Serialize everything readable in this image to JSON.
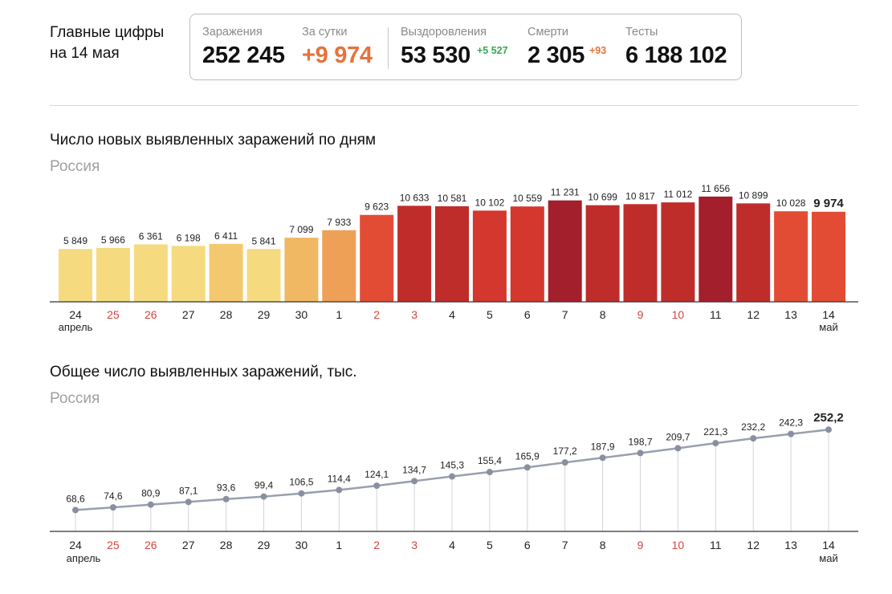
{
  "header": {
    "title_line1": "Главные цифры",
    "title_line2": "на 14 мая"
  },
  "stats": {
    "infections": {
      "label": "Заражения",
      "value": "252 245"
    },
    "daily": {
      "label": "За сутки",
      "value": "+9 974"
    },
    "recoveries": {
      "label": "Выздоровления",
      "value": "53 530",
      "delta": "+5 527"
    },
    "deaths": {
      "label": "Смерти",
      "value": "2 305",
      "delta": "+93"
    },
    "tests": {
      "label": "Тесты",
      "value": "6 188 102"
    }
  },
  "colors": {
    "pale_yellow": "#f6da80",
    "yellow": "#f3c86e",
    "light_orange": "#f0b863",
    "orange": "#efa057",
    "red_orange": "#e24c35",
    "red": "#d4372d",
    "deep_red": "#bf2d2b",
    "darkest_red": "#a31f2b",
    "weekend_red": "#d6453a",
    "line_gray": "#9a9fb0",
    "accent_orange": "#e8713a",
    "accent_green": "#34a853"
  },
  "chart_data": [
    {
      "type": "bar",
      "title": "Число новых выявленных заражений по дням",
      "subtitle": "Россия",
      "categories": [
        "24",
        "25",
        "26",
        "27",
        "28",
        "29",
        "30",
        "1",
        "2",
        "3",
        "4",
        "5",
        "6",
        "7",
        "8",
        "9",
        "10",
        "11",
        "12",
        "13",
        "14"
      ],
      "values": [
        5849,
        5966,
        6361,
        6198,
        6411,
        5841,
        7099,
        7933,
        9623,
        10633,
        10581,
        10102,
        10559,
        11231,
        10699,
        10817,
        11012,
        11656,
        10899,
        10028,
        9974
      ],
      "value_labels": [
        "5 849",
        "5 966",
        "6 361",
        "6 198",
        "6 411",
        "5 841",
        "7 099",
        "7 933",
        "9 623",
        "10 633",
        "10 581",
        "10 102",
        "10 559",
        "11 231",
        "10 699",
        "10 817",
        "11 012",
        "11 656",
        "10 899",
        "10 028",
        "9 974"
      ],
      "bar_colors": [
        "#f6da80",
        "#f6da80",
        "#f6da80",
        "#f6da80",
        "#f3c86e",
        "#f6da80",
        "#f0b863",
        "#efa057",
        "#e24c35",
        "#bf2d2b",
        "#bf2d2b",
        "#d4372d",
        "#d4372d",
        "#a31f2b",
        "#bf2d2b",
        "#bf2d2b",
        "#bf2d2b",
        "#a31f2b",
        "#bf2d2b",
        "#e24c35",
        "#e24c35"
      ],
      "highlight_index": 20,
      "weekend_indices": [
        1,
        2,
        8,
        9,
        15,
        16
      ],
      "month_labels": {
        "start": "апрель",
        "end": "май"
      },
      "ylim": [
        0,
        12000
      ],
      "grid": false
    },
    {
      "type": "line",
      "title": "Общее число выявленных заражений, тыс.",
      "subtitle": "Россия",
      "categories": [
        "24",
        "25",
        "26",
        "27",
        "28",
        "29",
        "30",
        "1",
        "2",
        "3",
        "4",
        "5",
        "6",
        "7",
        "8",
        "9",
        "10",
        "11",
        "12",
        "13",
        "14"
      ],
      "values": [
        68.6,
        74.6,
        80.9,
        87.1,
        93.6,
        99.4,
        106.5,
        114.4,
        124.1,
        134.7,
        145.3,
        155.4,
        165.9,
        177.2,
        187.9,
        198.7,
        209.7,
        221.3,
        232.2,
        242.3,
        252.2
      ],
      "value_labels": [
        "68,6",
        "74,6",
        "80,9",
        "87,1",
        "93,6",
        "99,4",
        "106,5",
        "114,4",
        "124,1",
        "134,7",
        "145,3",
        "155,4",
        "165,9",
        "177,2",
        "187,9",
        "198,7",
        "209,7",
        "221,3",
        "232,2",
        "242,3",
        "252,2"
      ],
      "highlight_index": 20,
      "weekend_indices": [
        1,
        2,
        8,
        9,
        15,
        16
      ],
      "month_labels": {
        "start": "апрель",
        "end": "май"
      },
      "ylim": [
        0,
        260
      ],
      "grid": false
    }
  ]
}
